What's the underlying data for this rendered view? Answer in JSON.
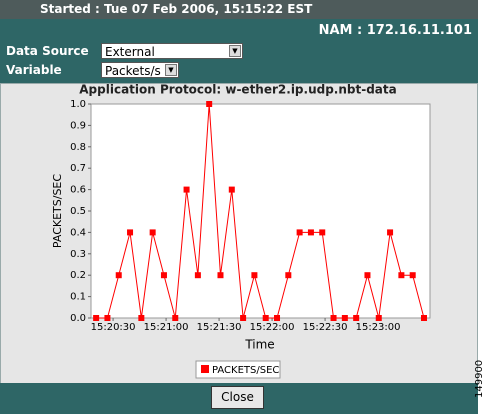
{
  "header": {
    "started": "Started : Tue 07 Feb 2006, 15:15:22 EST",
    "nam": "NAM : 172.16.11.101"
  },
  "form": {
    "data_source_label": "Data Source",
    "data_source_value": "External",
    "variable_label": "Variable",
    "variable_value": "Packets/s"
  },
  "chart_data": {
    "type": "line",
    "title": "Application Protocol: w-ether2.ip.udp.nbt-data",
    "x_label": "Time",
    "y_label": "PACKETS/SEC",
    "x": [
      55220.4,
      55226.8,
      55233.2,
      55239.6,
      55246.0,
      55252.4,
      55258.8,
      55265.2,
      55271.6,
      55278.0,
      55284.4,
      55290.8,
      55297.2,
      55303.6,
      55310.0,
      55316.4,
      55322.8,
      55329.2,
      55335.6,
      55342.0,
      55348.4,
      55354.8,
      55361.2,
      55367.6,
      55374.0,
      55380.4,
      55386.8,
      55393.2,
      55399.6,
      55406.0
    ],
    "series": [
      {
        "name": "PACKETS/SEC",
        "color": "#ff0000",
        "values": [
          0,
          0,
          0.2,
          0.4,
          0,
          0.4,
          0.2,
          0,
          0.6,
          0.2,
          1.0,
          0.2,
          0.6,
          0,
          0.2,
          0,
          0,
          0.2,
          0.4,
          0.4,
          0.4,
          0,
          0,
          0,
          0.2,
          0,
          0.4,
          0.2,
          0.2,
          0
        ]
      }
    ],
    "xlim": [
      55217.5,
      55409.4
    ],
    "ylim": [
      0,
      1
    ],
    "xticks": [
      {
        "value": 55230,
        "label": "15:20:30"
      },
      {
        "value": 55260,
        "label": "15:21:00"
      },
      {
        "value": 55290,
        "label": "15:21:30"
      },
      {
        "value": 55320,
        "label": "15:22:00"
      },
      {
        "value": 55350,
        "label": "15:22:30"
      },
      {
        "value": 55380,
        "label": "15:23:00"
      }
    ],
    "yticks": [
      {
        "value": 0,
        "label": "0.0"
      },
      0.1,
      0.2,
      0.3,
      0.4,
      0.5,
      0.6,
      0.7,
      0.8,
      0.9,
      {
        "value": 1,
        "label": "1.0"
      }
    ],
    "grid": false,
    "legend": "bottom"
  },
  "buttons": {
    "close": "Close"
  },
  "figure_id": "149900"
}
